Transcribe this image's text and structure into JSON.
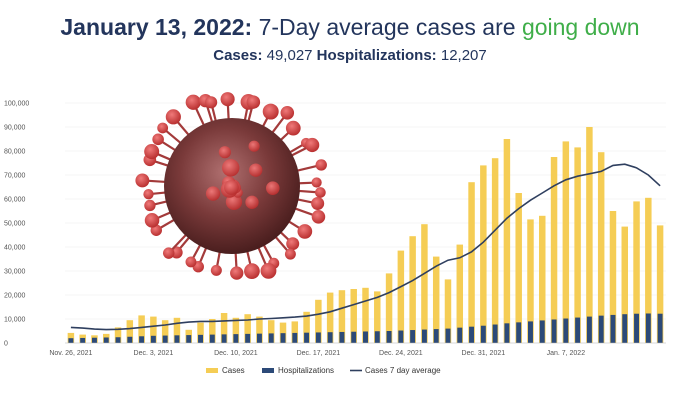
{
  "headline": {
    "date": "January 13, 2022:",
    "text": " 7-Day average cases are ",
    "trend": "going down"
  },
  "subline": {
    "cases_label": "Cases:",
    "cases_value": " 49,027 ",
    "hosp_label": "Hospitalizations:",
    "hosp_value": " 12,207"
  },
  "colors": {
    "cases": "#f5cd55",
    "hospitalizations": "#2c4a78",
    "average": "#2f3f5f",
    "headline": "#23355c",
    "trend": "#3fae49"
  },
  "decoration": {
    "image": "coronavirus-virion"
  },
  "chart_data": {
    "type": "bar",
    "ylim": [
      0,
      100000
    ],
    "y_ticks": [
      "0",
      "10,000",
      "20,000",
      "30,000",
      "40,000",
      "50,000",
      "60,000",
      "70,000",
      "80,000",
      "90,000",
      "100,000"
    ],
    "x_tick_labels": [
      {
        "index": 0,
        "label": "Nov. 26, 2021"
      },
      {
        "index": 7,
        "label": "Dec. 3, 2021"
      },
      {
        "index": 14,
        "label": "Dec. 10, 2021"
      },
      {
        "index": 21,
        "label": "Dec. 17, 2021"
      },
      {
        "index": 28,
        "label": "Dec. 24, 2021"
      },
      {
        "index": 35,
        "label": "Dec. 31, 2021"
      },
      {
        "index": 42,
        "label": "Jan. 7, 2022"
      }
    ],
    "series": [
      {
        "name": "Cases",
        "type": "bar",
        "values": [
          4200,
          3500,
          3200,
          3800,
          6500,
          9500,
          11500,
          11000,
          9500,
          10500,
          5500,
          8500,
          10000,
          12500,
          10500,
          12000,
          11000,
          9500,
          8500,
          9000,
          13000,
          18000,
          21000,
          22000,
          22500,
          23000,
          21500,
          29000,
          38500,
          44500,
          49500,
          36000,
          26500,
          41000,
          67000,
          74000,
          77000,
          85000,
          62500,
          51500,
          53000,
          77500,
          84000,
          81500,
          90000,
          79500,
          55000,
          48500,
          59000,
          60500,
          49000
        ]
      },
      {
        "name": "Hospitalizations",
        "type": "bar",
        "values": [
          2000,
          2100,
          2200,
          2300,
          2400,
          2600,
          2800,
          3000,
          3100,
          3200,
          3300,
          3400,
          3500,
          3600,
          3700,
          3800,
          3900,
          4000,
          4100,
          4200,
          4300,
          4400,
          4500,
          4600,
          4700,
          4800,
          4900,
          5000,
          5200,
          5400,
          5600,
          5800,
          6000,
          6400,
          6800,
          7200,
          7700,
          8200,
          8600,
          9000,
          9400,
          9800,
          10200,
          10600,
          11000,
          11400,
          11700,
          12000,
          12200,
          12300,
          12207
        ]
      },
      {
        "name": "Cases 7 day average",
        "type": "line",
        "values": [
          6500,
          6200,
          5800,
          5600,
          5700,
          6000,
          6500,
          7000,
          7500,
          8200,
          8700,
          9000,
          9000,
          9200,
          9400,
          9600,
          10000,
          10200,
          10500,
          10800,
          11200,
          12000,
          13000,
          14500,
          16000,
          17500,
          19000,
          21000,
          23500,
          26000,
          29000,
          32000,
          34500,
          35500,
          38000,
          42000,
          47000,
          52000,
          56000,
          59500,
          62500,
          65500,
          68000,
          69500,
          70500,
          71500,
          74000,
          74500,
          73000,
          70000,
          65500
        ]
      }
    ],
    "legend": {
      "placement": "bottom"
    }
  }
}
